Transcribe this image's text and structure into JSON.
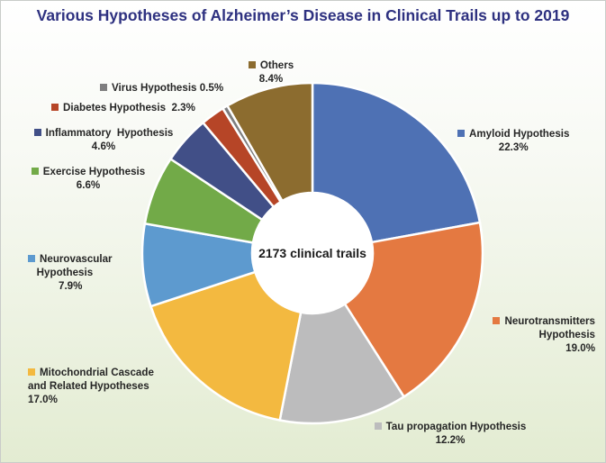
{
  "title": "Various Hypotheses of Alzheimer’s Disease in Clinical Trails up to 2019",
  "center_label": "2173 clinical trails",
  "colors": {
    "amyloid": "#4e71b4",
    "neuro": "#e47941",
    "tau": "#bcbcbd",
    "mito": "#f3b940",
    "vascular": "#5d9acf",
    "exercise": "#72aa48",
    "inflam": "#414f87",
    "diabetes": "#b64527",
    "virus": "#7e7e7f",
    "others": "#8c6c2f"
  },
  "chart_data": {
    "type": "pie",
    "title": "Various Hypotheses of Alzheimer’s Disease in Clinical Trails up to 2019",
    "center_text": "2173 clinical trails",
    "slices": [
      {
        "key": "amyloid",
        "label": "Amyloid Hypothesis",
        "value": 22.3,
        "value_text": "22.3%"
      },
      {
        "key": "neuro",
        "label": "Neurotransmitters Hypothesis",
        "value": 19.0,
        "value_text": "19.0%"
      },
      {
        "key": "tau",
        "label": "Tau propagation Hypothesis",
        "value": 12.2,
        "value_text": "12.2%"
      },
      {
        "key": "mito",
        "label": "Mitochondrial Cascade and Related Hypotheses",
        "value": 17.0,
        "value_text": "17.0%"
      },
      {
        "key": "vascular",
        "label": "Neurovascular Hypothesis",
        "value": 7.9,
        "value_text": "7.9%"
      },
      {
        "key": "exercise",
        "label": "Exercise Hypothesis",
        "value": 6.6,
        "value_text": "6.6%"
      },
      {
        "key": "inflam",
        "label": "Inflammatory  Hypothesis",
        "value": 4.6,
        "value_text": "4.6%"
      },
      {
        "key": "diabetes",
        "label": "Diabetes Hypothesis",
        "value": 2.3,
        "value_text": "2.3%"
      },
      {
        "key": "virus",
        "label": "Virus Hypothesis",
        "value": 0.5,
        "value_text": "0.5%"
      },
      {
        "key": "others",
        "label": "Others",
        "value": 8.4,
        "value_text": "8.4%"
      }
    ]
  }
}
